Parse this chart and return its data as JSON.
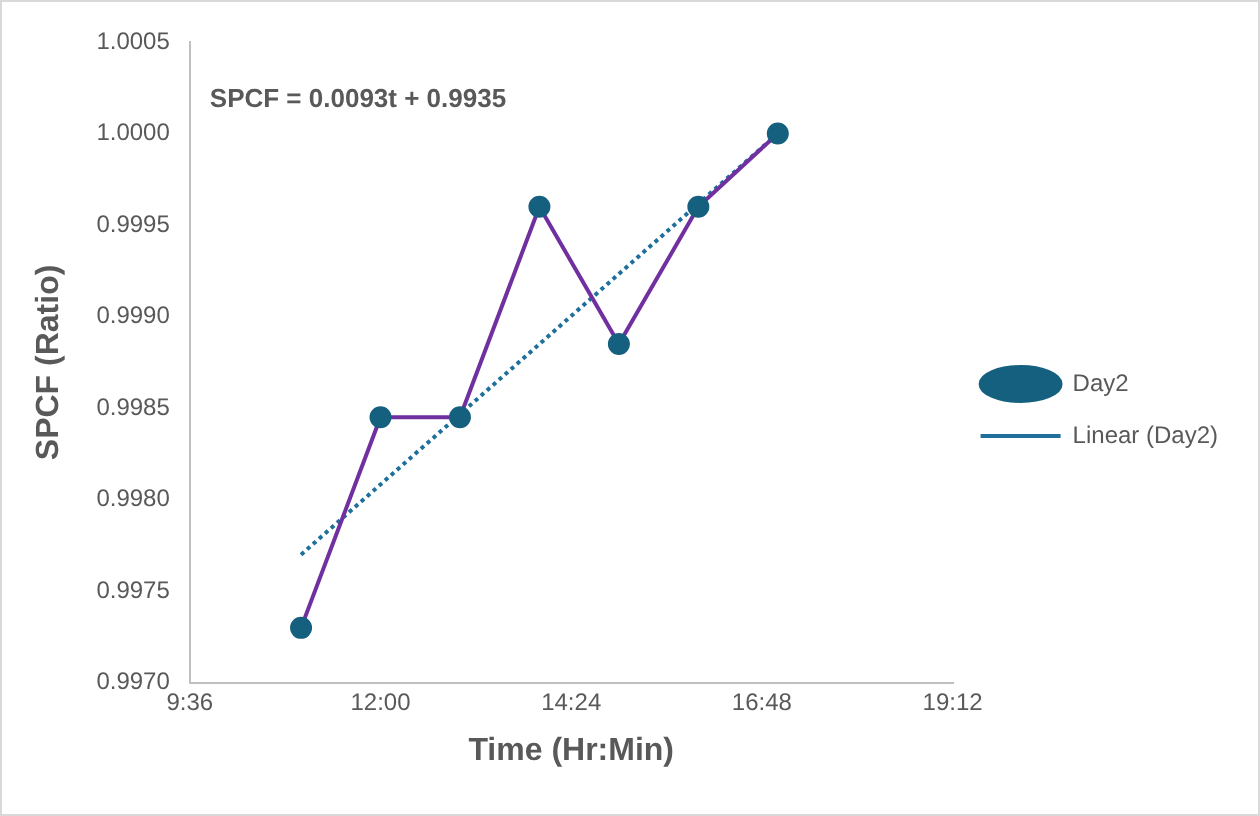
{
  "chart_data": {
    "type": "line",
    "xlabel": "Time (Hr:Min)",
    "ylabel": "SPCF (Ratio)",
    "annotations": [
      "SPCF = 0.0093t + 0.9935"
    ],
    "x": [
      11,
      12,
      13,
      14,
      15,
      16,
      17
    ],
    "series": [
      {
        "name": "Day2",
        "color": "#7030a0",
        "colors": [
          "#16607f",
          "#16607f",
          "#16607f",
          "#16607f",
          "#16607f",
          "#16607f",
          "#16607f"
        ],
        "values": [
          0.9973,
          0.99845,
          0.99845,
          0.9996,
          0.99885,
          0.9996,
          1.0
        ],
        "marker": "circle",
        "line_style": "solid"
      },
      {
        "name": "Linear (Day2)",
        "type": "line",
        "color": "#1f6f9a",
        "x": [
          11,
          17
        ],
        "values": [
          0.9977,
          1.0
        ],
        "marker": "none",
        "line_style": "dotted"
      }
    ],
    "xlim": [
      9.6,
      19.2
    ],
    "xticks": [
      {
        "value": 9.6,
        "label": "9:36"
      },
      {
        "value": 12,
        "label": "12:00"
      },
      {
        "value": 14.4,
        "label": "14:24"
      },
      {
        "value": 16.8,
        "label": "16:48"
      },
      {
        "value": 19.2,
        "label": "19:12"
      }
    ],
    "ylim": [
      0.997,
      1.0005
    ],
    "yticks": [
      {
        "value": 0.997,
        "label": "0.9970"
      },
      {
        "value": 0.9975,
        "label": "0.9975"
      },
      {
        "value": 0.998,
        "label": "0.9980"
      },
      {
        "value": 0.9985,
        "label": "0.9985"
      },
      {
        "value": 0.999,
        "label": "0.9990"
      },
      {
        "value": 0.9995,
        "label": "0.9995"
      },
      {
        "value": 1.0,
        "label": "1.0000"
      },
      {
        "value": 1.0005,
        "label": "1.0005"
      }
    ],
    "grid": false,
    "legend": "right"
  }
}
